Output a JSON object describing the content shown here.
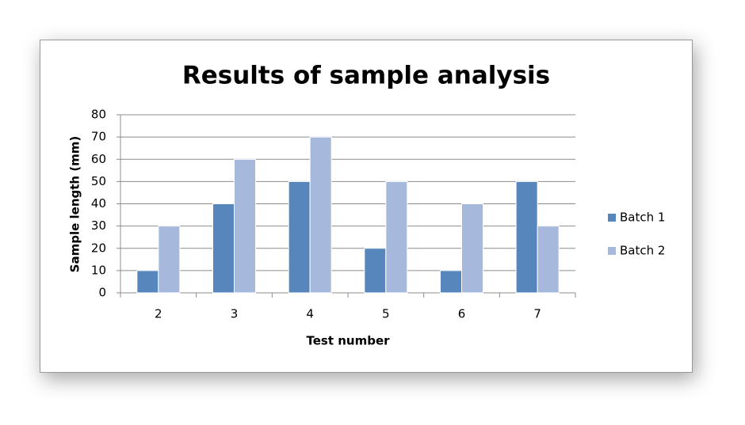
{
  "chart_data": {
    "type": "bar",
    "title": "Results of sample analysis",
    "x_label": "Test number",
    "y_label": "Sample length (mm)",
    "categories": [
      "2",
      "3",
      "4",
      "5",
      "6",
      "7"
    ],
    "series": [
      {
        "name": "Batch 1",
        "color": "#5686bb",
        "values": [
          10,
          40,
          50,
          20,
          10,
          50
        ]
      },
      {
        "name": "Batch 2",
        "color": "#a6b9dc",
        "values": [
          30,
          60,
          70,
          50,
          40,
          30
        ]
      }
    ],
    "ylim": [
      0,
      80
    ],
    "yticks": [
      0,
      10,
      20,
      30,
      40,
      50,
      60,
      70,
      80
    ],
    "grid": true,
    "legend": "right"
  }
}
